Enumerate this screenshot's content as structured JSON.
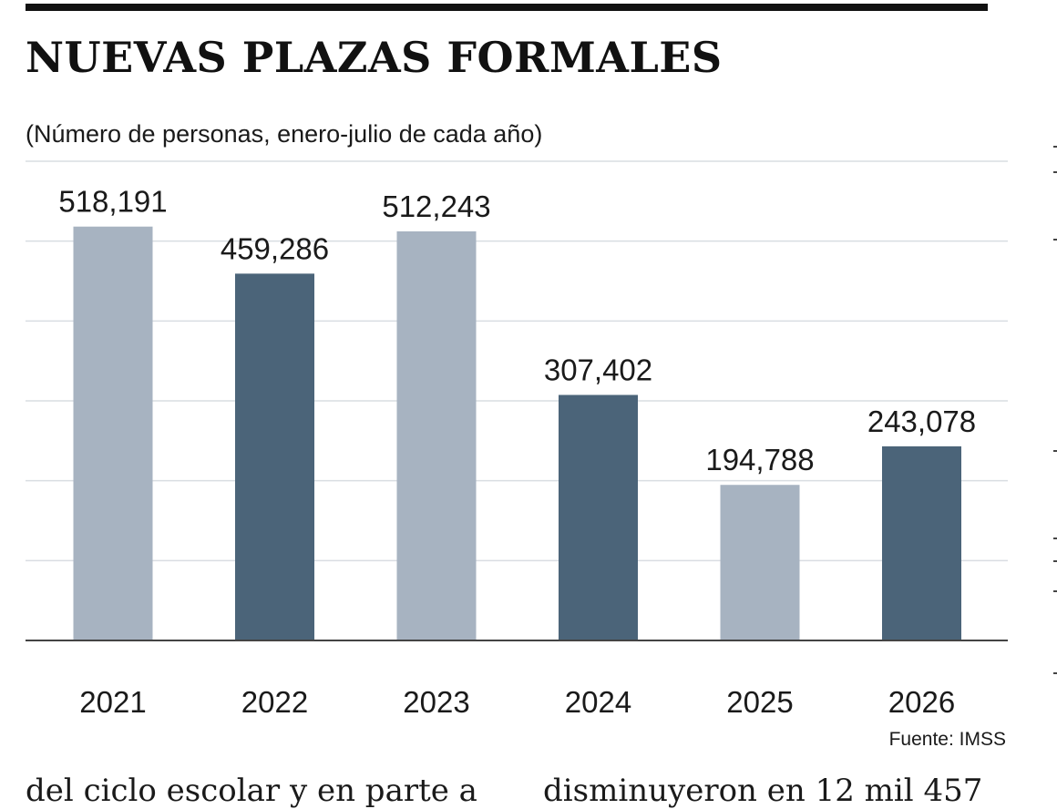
{
  "header": {
    "title": "NUEVAS PLAZAS FORMALES",
    "subtitle": "(Número de personas, enero-julio de cada año)"
  },
  "chart_data": {
    "type": "bar",
    "categories": [
      "2021",
      "2022",
      "2023",
      "2024",
      "2025",
      "2026"
    ],
    "values": [
      518191,
      459286,
      512243,
      307402,
      194788,
      243078
    ],
    "value_labels": [
      "518,191",
      "459,286",
      "512,243",
      "307,402",
      "194,788",
      "243,078"
    ],
    "bar_colors": [
      "#a7b3c1",
      "#4b6479",
      "#a7b3c1",
      "#4b6479",
      "#a7b3c1",
      "#4b6479"
    ],
    "ylim": [
      0,
      600000
    ],
    "yticks": [
      0,
      100000,
      200000,
      300000,
      400000,
      500000,
      600000
    ],
    "grid": true,
    "grid_color": "#d9dde2",
    "axis_color": "#444444",
    "label_color": "#1a1a1a"
  },
  "footer": {
    "source": "Fuente: IMSS"
  },
  "body_text": {
    "left": "del ciclo escolar y en parte a",
    "right": "disminuyeron en 12 mil 457"
  }
}
